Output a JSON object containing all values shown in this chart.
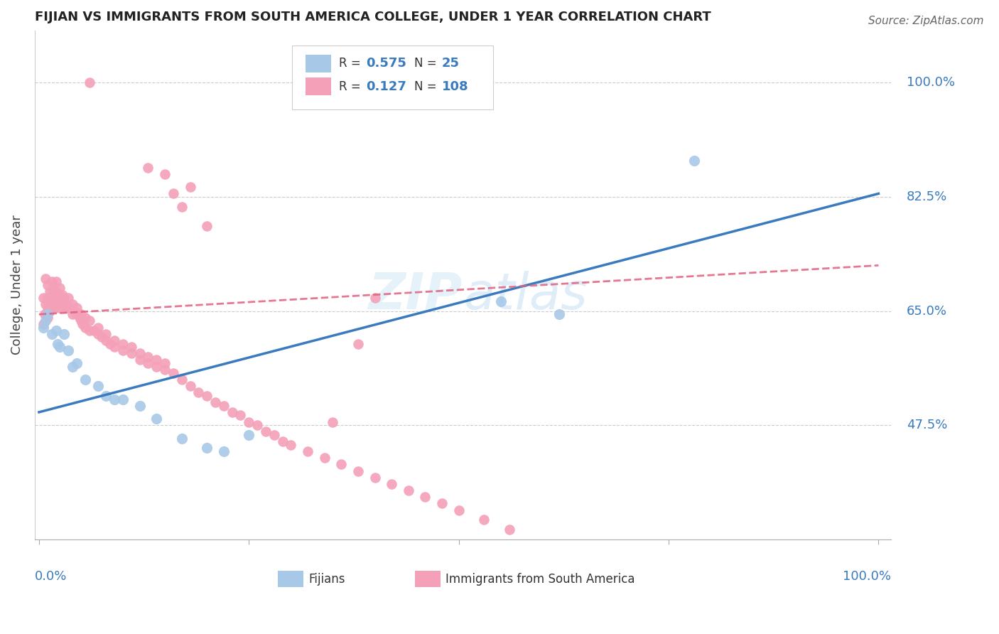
{
  "title": "FIJIAN VS IMMIGRANTS FROM SOUTH AMERICA COLLEGE, UNDER 1 YEAR CORRELATION CHART",
  "source": "Source: ZipAtlas.com",
  "ylabel": "College, Under 1 year",
  "xlim": [
    0.0,
    1.0
  ],
  "ylim": [
    0.3,
    1.08
  ],
  "yticks": [
    0.475,
    0.65,
    0.825,
    1.0
  ],
  "ytick_labels": [
    "47.5%",
    "65.0%",
    "82.5%",
    "100.0%"
  ],
  "fijian_color": "#a8c8e8",
  "sa_color": "#f4a0b8",
  "fijian_line_color": "#3a7abf",
  "sa_line_color": "#e06080",
  "legend_r_fijian": "0.575",
  "legend_n_fijian": "25",
  "legend_r_sa": "0.127",
  "legend_n_sa": "108",
  "background_color": "#ffffff",
  "fijian_x": [
    0.005,
    0.008,
    0.01,
    0.015,
    0.02,
    0.022,
    0.025,
    0.03,
    0.035,
    0.04,
    0.045,
    0.055,
    0.07,
    0.08,
    0.09,
    0.1,
    0.12,
    0.14,
    0.17,
    0.2,
    0.22,
    0.25,
    0.55,
    0.62,
    0.78
  ],
  "fijian_y": [
    0.625,
    0.635,
    0.645,
    0.615,
    0.62,
    0.6,
    0.595,
    0.615,
    0.59,
    0.565,
    0.57,
    0.545,
    0.535,
    0.52,
    0.515,
    0.515,
    0.505,
    0.485,
    0.455,
    0.44,
    0.435,
    0.46,
    0.665,
    0.645,
    0.88
  ],
  "sa_x": [
    0.005,
    0.005,
    0.007,
    0.008,
    0.008,
    0.01,
    0.01,
    0.01,
    0.01,
    0.012,
    0.012,
    0.013,
    0.013,
    0.015,
    0.015,
    0.015,
    0.017,
    0.017,
    0.018,
    0.018,
    0.02,
    0.02,
    0.02,
    0.02,
    0.022,
    0.022,
    0.025,
    0.025,
    0.025,
    0.028,
    0.028,
    0.03,
    0.03,
    0.032,
    0.035,
    0.035,
    0.038,
    0.04,
    0.04,
    0.042,
    0.045,
    0.045,
    0.048,
    0.05,
    0.05,
    0.052,
    0.055,
    0.055,
    0.06,
    0.06,
    0.065,
    0.07,
    0.07,
    0.075,
    0.08,
    0.08,
    0.085,
    0.09,
    0.09,
    0.1,
    0.1,
    0.11,
    0.11,
    0.12,
    0.12,
    0.13,
    0.13,
    0.14,
    0.14,
    0.15,
    0.15,
    0.16,
    0.17,
    0.18,
    0.19,
    0.2,
    0.21,
    0.22,
    0.23,
    0.24,
    0.25,
    0.26,
    0.27,
    0.28,
    0.29,
    0.3,
    0.32,
    0.34,
    0.36,
    0.38,
    0.4,
    0.42,
    0.44,
    0.46,
    0.48,
    0.5,
    0.53,
    0.56,
    0.35,
    0.38,
    0.4,
    0.06,
    0.13,
    0.15,
    0.16,
    0.17,
    0.18,
    0.2
  ],
  "sa_y": [
    0.63,
    0.67,
    0.645,
    0.66,
    0.7,
    0.64,
    0.655,
    0.67,
    0.69,
    0.655,
    0.67,
    0.65,
    0.68,
    0.655,
    0.675,
    0.695,
    0.66,
    0.68,
    0.665,
    0.685,
    0.655,
    0.665,
    0.68,
    0.695,
    0.66,
    0.675,
    0.655,
    0.67,
    0.685,
    0.66,
    0.675,
    0.655,
    0.67,
    0.655,
    0.655,
    0.67,
    0.655,
    0.645,
    0.66,
    0.65,
    0.645,
    0.655,
    0.64,
    0.635,
    0.645,
    0.63,
    0.625,
    0.64,
    0.62,
    0.635,
    0.62,
    0.615,
    0.625,
    0.61,
    0.605,
    0.615,
    0.6,
    0.595,
    0.605,
    0.59,
    0.6,
    0.585,
    0.595,
    0.575,
    0.585,
    0.57,
    0.58,
    0.565,
    0.575,
    0.56,
    0.57,
    0.555,
    0.545,
    0.535,
    0.525,
    0.52,
    0.51,
    0.505,
    0.495,
    0.49,
    0.48,
    0.475,
    0.465,
    0.46,
    0.45,
    0.445,
    0.435,
    0.425,
    0.415,
    0.405,
    0.395,
    0.385,
    0.375,
    0.365,
    0.355,
    0.345,
    0.33,
    0.315,
    0.48,
    0.6,
    0.67,
    1.0,
    0.87,
    0.86,
    0.83,
    0.81,
    0.84,
    0.78
  ],
  "fijian_line_x0": 0.0,
  "fijian_line_y0": 0.495,
  "fijian_line_x1": 1.0,
  "fijian_line_y1": 0.83,
  "sa_line_x0": 0.0,
  "sa_line_y0": 0.645,
  "sa_line_x1": 1.0,
  "sa_line_y1": 0.72
}
